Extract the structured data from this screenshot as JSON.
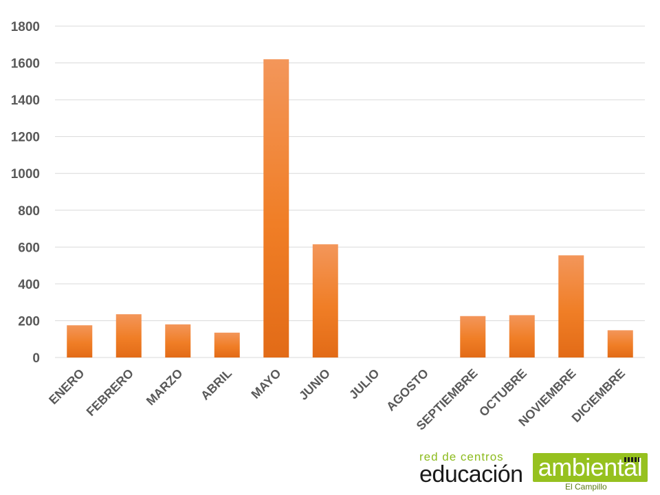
{
  "chart_data": {
    "type": "bar",
    "categories": [
      "ENERO",
      "FEBRERO",
      "MARZO",
      "ABRIL",
      "MAYO",
      "JUNIO",
      "JULIO",
      "AGOSTO",
      "SEPTIEMBRE",
      "OCTUBRE",
      "NOVIEMBRE",
      "DICIEMBRE"
    ],
    "values": [
      175,
      235,
      180,
      135,
      1620,
      615,
      0,
      0,
      225,
      230,
      555,
      148
    ],
    "title": "",
    "xlabel": "",
    "ylabel": "",
    "ylim": [
      0,
      1800
    ],
    "yticks": [
      0,
      200,
      400,
      600,
      800,
      1000,
      1200,
      1400,
      1600,
      1800
    ],
    "grid": true,
    "legend": "none",
    "bar_color": "#f07e26"
  },
  "logo": {
    "line1": "red de centros",
    "line2": "educación",
    "line3": "ambiental",
    "line4": "El Campillo",
    "green": "#96c11f"
  }
}
